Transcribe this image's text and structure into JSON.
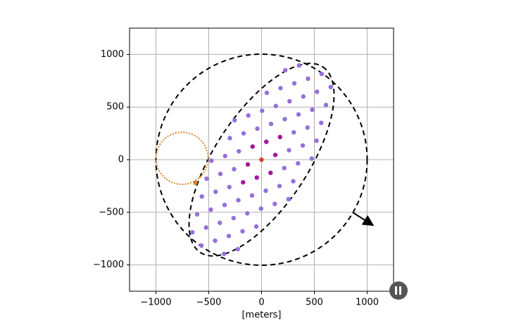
{
  "chart_data": {
    "type": "scatter",
    "xlabel": "[meters]",
    "xlim": [
      -1250,
      1250
    ],
    "ylim": [
      -1250,
      1250
    ],
    "xticks": [
      {
        "value": -1000,
        "label": "−1000"
      },
      {
        "value": -500,
        "label": "−500"
      },
      0,
      500,
      1000
    ],
    "yticks": [
      {
        "value": -1000,
        "label": "−1000"
      },
      {
        "value": -500,
        "label": "−500"
      },
      0,
      500,
      1000
    ],
    "grid": true,
    "series": [
      {
        "color": "#9370db",
        "x": [
          260,
          390,
          520,
          -475,
          -345,
          -215,
          305,
          435,
          565,
          -300,
          -170,
          -40,
          90,
          220,
          350,
          480,
          610,
          -255,
          -125,
          5,
          135,
          265,
          395,
          525,
          655,
          50,
          180,
          310,
          440,
          570,
          225,
          355,
          -260,
          -390,
          -520,
          475,
          345,
          215,
          -305,
          -435,
          -565,
          300,
          170,
          40,
          -90,
          -220,
          -350,
          -480,
          -610,
          255,
          125,
          -5,
          -135,
          -265,
          -395,
          -525,
          -655,
          -50,
          -180,
          -310,
          -440,
          -570,
          -225,
          -355
        ],
        "y": [
          90,
          135,
          180,
          -10,
          35,
          80,
          260,
          305,
          350,
          205,
          250,
          295,
          340,
          385,
          430,
          475,
          520,
          375,
          420,
          465,
          510,
          555,
          600,
          645,
          690,
          635,
          680,
          725,
          770,
          815,
          850,
          895,
          -90,
          -135,
          -180,
          10,
          -35,
          -80,
          -260,
          -305,
          -350,
          -205,
          -250,
          -295,
          -340,
          -385,
          -430,
          -475,
          -520,
          -375,
          -420,
          -465,
          -510,
          -555,
          -600,
          -645,
          -690,
          -635,
          -680,
          -725,
          -770,
          -815,
          -850,
          -895
        ]
      },
      {
        "color": "#a0189e",
        "x": [
          130,
          45,
          175,
          -85,
          -130,
          -45,
          -175,
          85
        ],
        "y": [
          45,
          170,
          215,
          125,
          -45,
          -170,
          -215,
          -125
        ]
      },
      {
        "color": "#d9402b",
        "x": [
          0
        ],
        "y": [
          0
        ]
      },
      {
        "color": "#d9832b",
        "x": [
          -627
        ],
        "y": [
          -220
        ]
      }
    ]
  }
}
